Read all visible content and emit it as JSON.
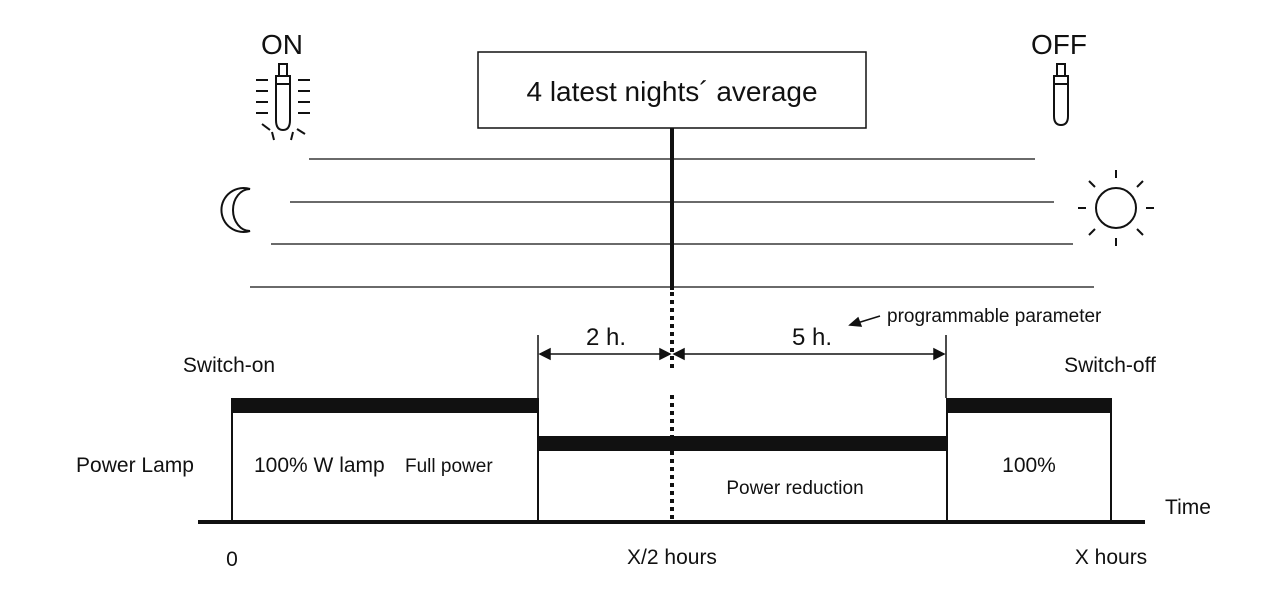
{
  "header": {
    "on_label": "ON",
    "off_label": "OFF",
    "average_box": "4 latest nights´ average"
  },
  "intervals": {
    "before_mid": "2 h.",
    "after_mid": "5 h.",
    "note": "programmable parameter"
  },
  "events": {
    "switch_on": "Switch-on",
    "switch_off": "Switch-off"
  },
  "power": {
    "row_label": "Power Lamp",
    "full_percent": "100% W lamp",
    "full_text": "Full power",
    "reduction_text": "Power reduction",
    "end_percent": "100%"
  },
  "time_axis": {
    "label": "Time",
    "ticks": [
      "0",
      "X/2 hours",
      "X hours"
    ]
  },
  "icons": [
    "lamp-on-icon",
    "lamp-off-icon",
    "moon-icon",
    "sun-icon"
  ],
  "colors": {
    "ink": "#111111",
    "background": "#ffffff"
  }
}
